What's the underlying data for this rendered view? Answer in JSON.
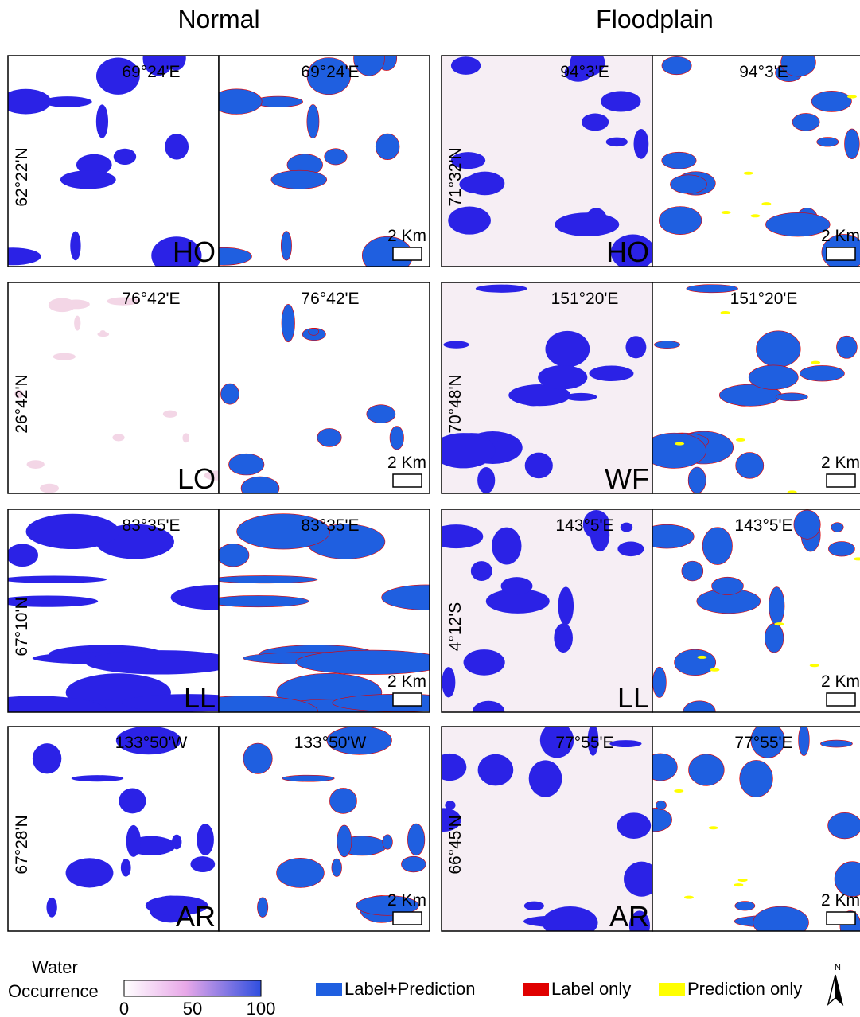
{
  "columns": [
    {
      "title": "Normal",
      "rows": [
        {
          "longitude": "69°24'E",
          "latitude": "62°22'N",
          "code": "HO",
          "scale": "2 Km"
        },
        {
          "longitude": "76°42'E",
          "latitude": "26°42'N",
          "code": "LO",
          "scale": "2 Km"
        },
        {
          "longitude": "83°35'E",
          "latitude": "67°10'N",
          "code": "LL",
          "scale": "2 Km"
        },
        {
          "longitude": "133°50'W",
          "latitude": "67°28'N",
          "code": "AR",
          "scale": "2 Km"
        }
      ]
    },
    {
      "title": "Floodplain",
      "rows": [
        {
          "longitude": "94°3'E",
          "latitude": "71°32'N",
          "code": "HO",
          "scale": "2 Km"
        },
        {
          "longitude": "151°20'E",
          "latitude": "70°48'N",
          "code": "WF",
          "scale": "2 Km"
        },
        {
          "longitude": "143°5'E",
          "latitude": "4°12'S",
          "code": "LL",
          "scale": "2 Km"
        },
        {
          "longitude": "77°55'E",
          "latitude": "66°45'N",
          "code": "AR",
          "scale": "2 Km"
        }
      ]
    }
  ],
  "legend": {
    "occurrence_title": [
      "Water",
      "Occurrence"
    ],
    "colorbar_ticks": [
      0,
      50,
      100
    ],
    "items": [
      {
        "label": "Label+Prediction",
        "color": "#1f5fe0"
      },
      {
        "label": "Label only",
        "color": "#e00000"
      },
      {
        "label": "Prediction only",
        "color": "#ffff00"
      }
    ],
    "north": "N"
  }
}
